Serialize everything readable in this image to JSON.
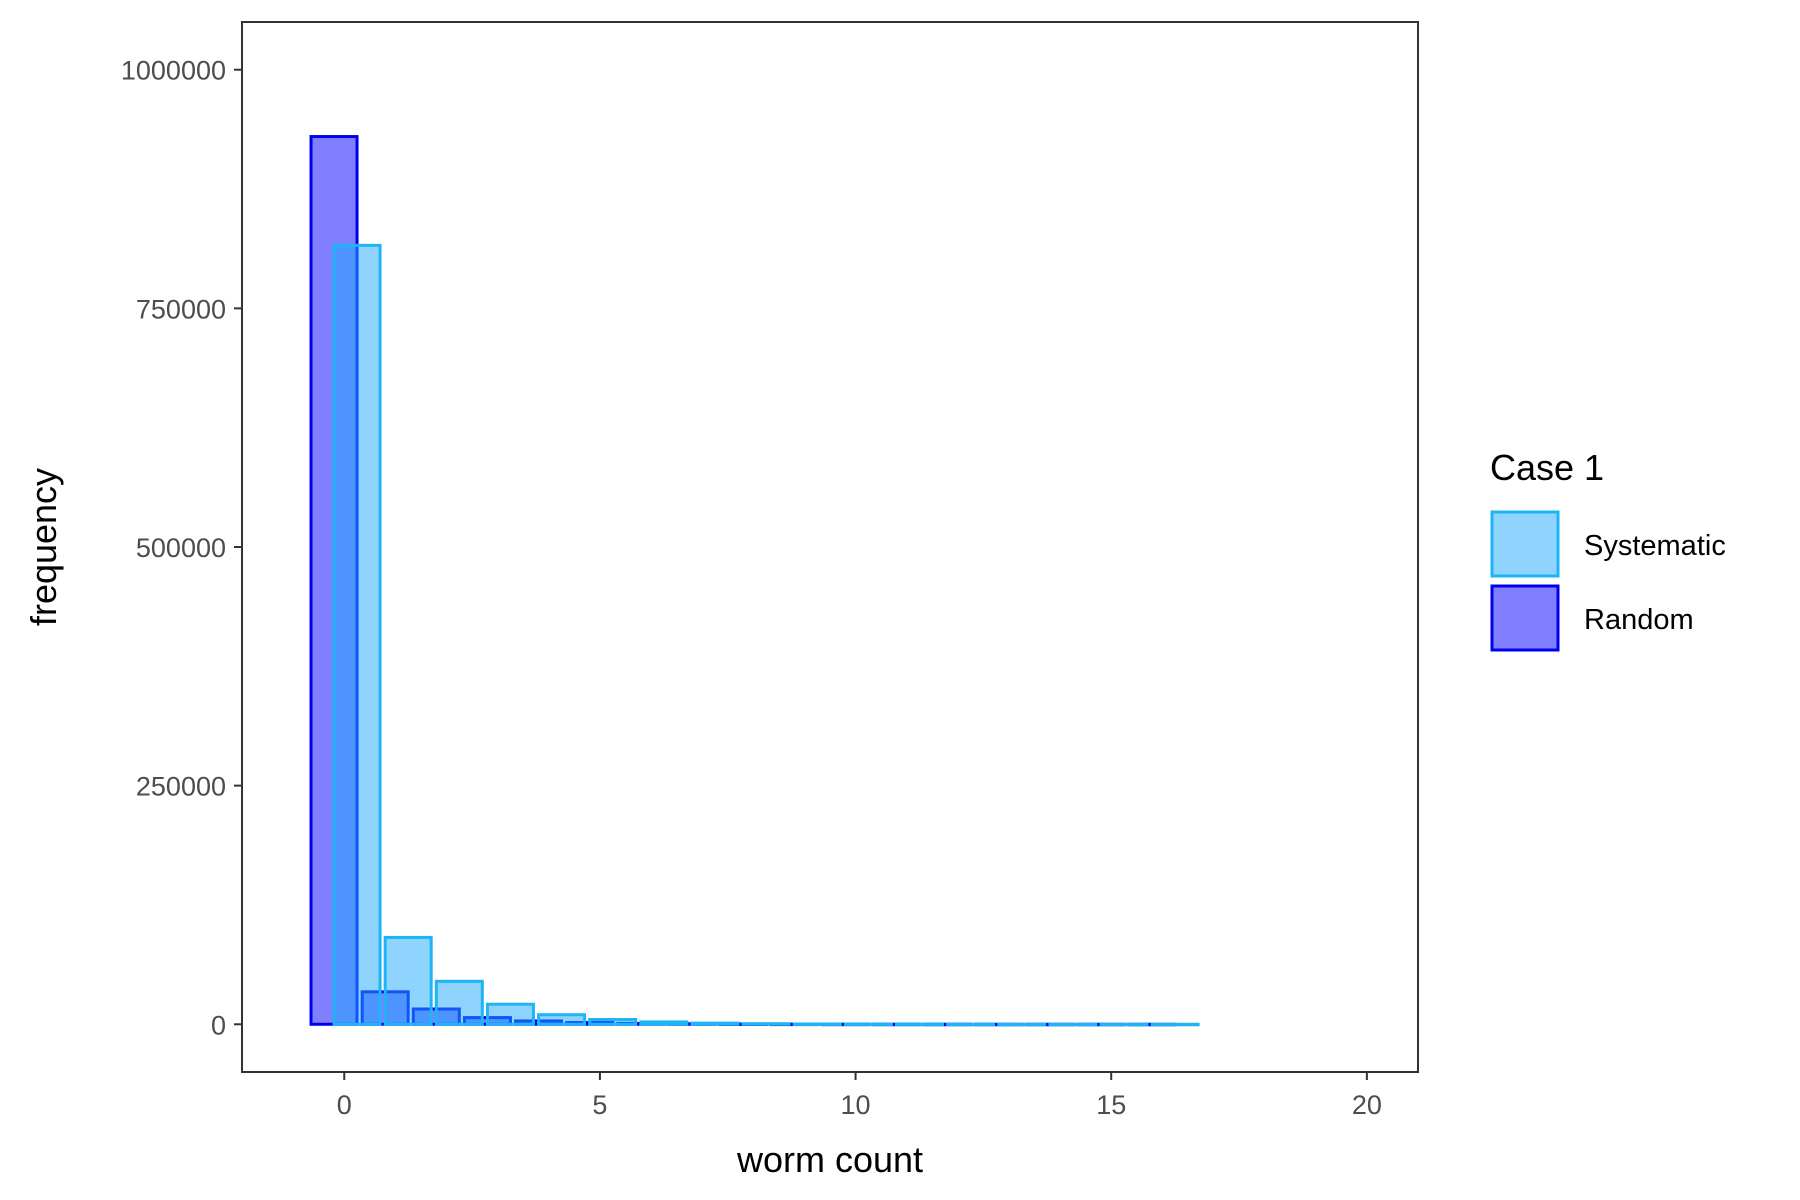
{
  "chart_data": {
    "type": "bar",
    "title": "",
    "xlabel": "worm count",
    "ylabel": "frequency",
    "xlim": [
      -2,
      21
    ],
    "ylim": [
      -50000,
      1050000
    ],
    "x_ticks": [
      0,
      5,
      10,
      15,
      20
    ],
    "y_ticks": [
      0,
      250000,
      500000,
      750000,
      1000000
    ],
    "x_tick_labels": [
      "0",
      "5",
      "10",
      "15",
      "20"
    ],
    "y_tick_labels": [
      "0",
      "250000",
      "500000",
      "750000",
      "1000000"
    ],
    "grid": false,
    "legend": {
      "title": "Case 1",
      "position": "right"
    },
    "bar_width": 0.9,
    "series": [
      {
        "name": "Random",
        "offset": -0.2,
        "fill": "#0000ff",
        "fill_opacity": 0.5,
        "stroke": "#0000ee",
        "x": [
          0,
          1,
          2,
          3,
          4,
          5,
          6,
          7,
          8,
          9,
          10,
          11,
          12,
          13,
          14,
          15,
          16
        ],
        "values": [
          930000,
          34000,
          16000,
          7000,
          3500,
          1800,
          900,
          500,
          300,
          200,
          120,
          80,
          50,
          30,
          20,
          10,
          5
        ]
      },
      {
        "name": "Systematic",
        "offset": 0.25,
        "fill": "#1eaaff",
        "fill_opacity": 0.5,
        "stroke": "#1eb4f5",
        "x": [
          0,
          1,
          2,
          3,
          4,
          5,
          6,
          7,
          8,
          9,
          10,
          11,
          12,
          13,
          14,
          15,
          16
        ],
        "values": [
          816000,
          91000,
          45000,
          21000,
          10000,
          5000,
          2500,
          1200,
          600,
          300,
          150,
          80,
          40,
          20,
          10,
          5,
          2
        ]
      }
    ],
    "draw_order": [
      "Random",
      "Systematic"
    ],
    "legend_order": [
      "Systematic",
      "Random"
    ]
  }
}
